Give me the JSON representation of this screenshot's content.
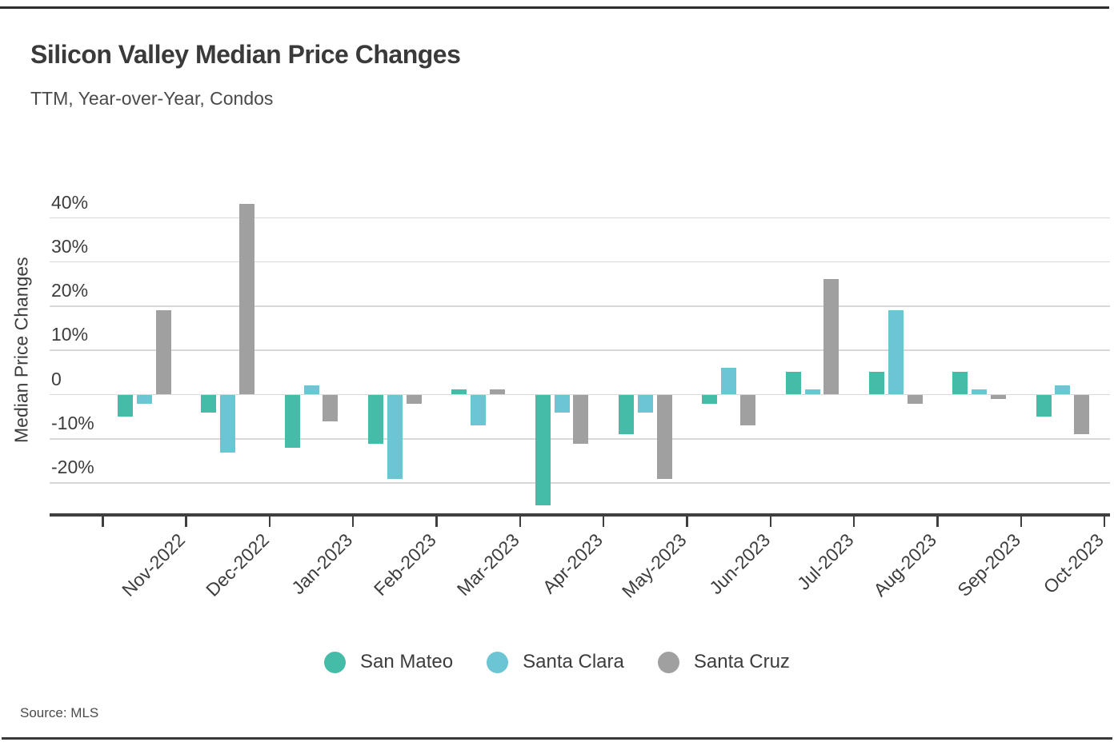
{
  "header": {
    "title": "Silicon Valley Median Price Changes",
    "subtitle": "TTM, Year-over-Year, Condos"
  },
  "footer": {
    "source": "Source: MLS"
  },
  "colors": {
    "san_mateo": "#45BCA8",
    "santa_clara": "#6BC5D2",
    "santa_cruz": "#A0A0A0",
    "gridline": "#D8D8D8",
    "axis": "#3F3F3F"
  },
  "chart_data": {
    "type": "bar",
    "title": "Silicon Valley Median Price Changes",
    "subtitle": "TTM, Year-over-Year, Condos",
    "xlabel": "",
    "ylabel": "Median Price Changes",
    "grid": "horizontal",
    "legend_position": "bottom",
    "ylim": [
      -27.5,
      47.5
    ],
    "y_ticks": [
      {
        "value": 40,
        "label": "40%"
      },
      {
        "value": 30,
        "label": "30%"
      },
      {
        "value": 20,
        "label": "20%"
      },
      {
        "value": 10,
        "label": "10%"
      },
      {
        "value": 0,
        "label": "0"
      },
      {
        "value": -10,
        "label": "-10%"
      },
      {
        "value": -20,
        "label": "-20%"
      }
    ],
    "categories": [
      "Nov-2022",
      "Dec-2022",
      "Jan-2023",
      "Feb-2023",
      "Mar-2023",
      "Apr-2023",
      "May-2023",
      "Jun-2023",
      "Jul-2023",
      "Aug-2023",
      "Sep-2023",
      "Oct-2023"
    ],
    "series": [
      {
        "name": "San Mateo",
        "color": "#45BCA8",
        "values": [
          -5,
          -4,
          -12,
          -11,
          1,
          -25,
          -9,
          -2,
          5,
          5,
          5,
          -5
        ]
      },
      {
        "name": "Santa Clara",
        "color": "#6BC5D2",
        "values": [
          -2,
          -13,
          2,
          -19,
          -7,
          -4,
          -4,
          6,
          1,
          19,
          1,
          2
        ]
      },
      {
        "name": "Santa Cruz",
        "color": "#A0A0A0",
        "values": [
          19,
          43,
          -6,
          -2,
          1,
          -11,
          -19,
          -7,
          26,
          -2,
          -1,
          -9
        ]
      }
    ]
  }
}
